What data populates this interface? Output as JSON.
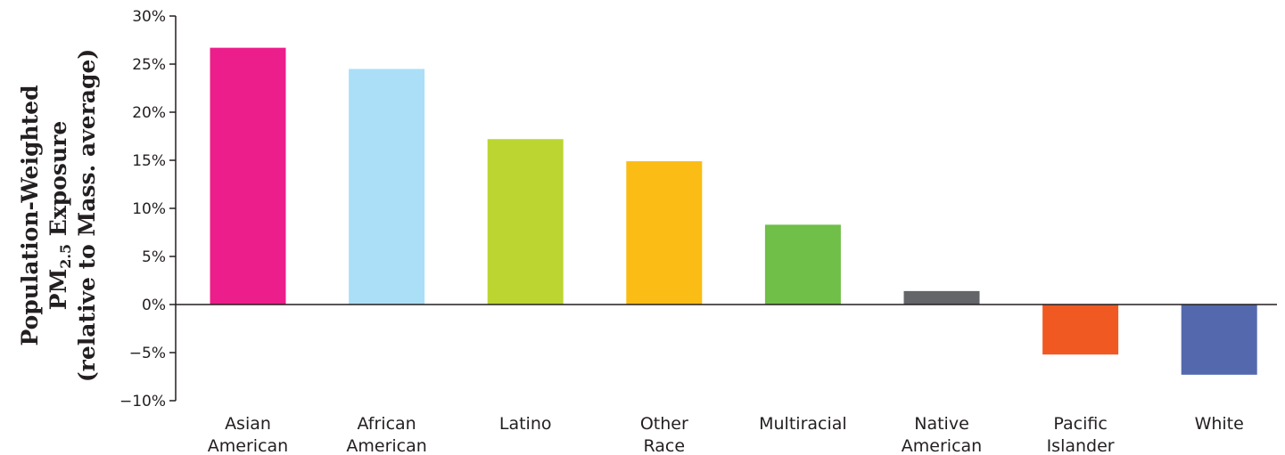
{
  "chart_data": {
    "type": "bar",
    "title": "",
    "xlabel": "",
    "ylabel": {
      "line1": "Population-Weighted",
      "line2_prefix": "PM",
      "line2_subscript": "2.5",
      "line2_suffix": " Exposure",
      "line3": "(relative to Mass. average)"
    },
    "categories": [
      [
        "Asian",
        "American"
      ],
      [
        "African",
        "American"
      ],
      [
        "Latino"
      ],
      [
        "Other",
        "Race"
      ],
      [
        "Multiracial"
      ],
      [
        "Native",
        "American"
      ],
      [
        "Pacific",
        "Islander"
      ],
      [
        "White"
      ]
    ],
    "values": [
      26.7,
      24.5,
      17.2,
      14.9,
      8.3,
      1.4,
      -5.2,
      -7.3
    ],
    "colors": [
      "#ec1e8b",
      "#aadff7",
      "#bcd531",
      "#fbbd15",
      "#6fbf48",
      "#646569",
      "#f05a22",
      "#5469ad"
    ],
    "ylim": [
      -10,
      30
    ],
    "yticks": [
      30,
      25,
      20,
      15,
      10,
      5,
      0,
      -5,
      -10
    ],
    "ytick_labels": [
      "30%",
      "25%",
      "20%",
      "15%",
      "10%",
      "5%",
      "0%",
      "−5%",
      "−10%"
    ],
    "grid": false,
    "legend": "none"
  }
}
